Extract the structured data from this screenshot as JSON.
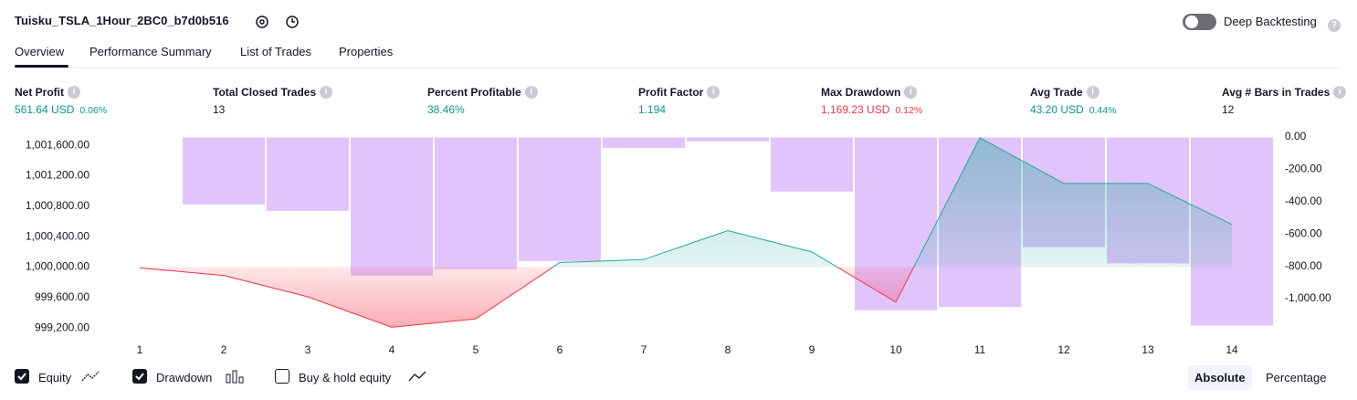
{
  "header": {
    "title": "Tuisku_TSLA_1Hour_2BC0_b7d0b516",
    "toggle_label": "Deep Backtesting"
  },
  "tabs": [
    "Overview",
    "Performance Summary",
    "List of Trades",
    "Properties"
  ],
  "metrics": [
    {
      "label": "Net Profit",
      "value": "561.64 USD",
      "percent": "0.06%",
      "color": "#089981"
    },
    {
      "label": "Total Closed Trades",
      "value": "13",
      "color": "#131722"
    },
    {
      "label": "Percent Profitable",
      "value": "38.46%",
      "color": "#089981"
    },
    {
      "label": "Profit Factor",
      "value": "1.194",
      "color": "#089981"
    },
    {
      "label": "Max Drawdown",
      "value": "1,169.23 USD",
      "percent": "0.12%",
      "color": "#f23645"
    },
    {
      "label": "Avg Trade",
      "value": "43.20 USD",
      "percent": "0.44%",
      "color": "#089981"
    },
    {
      "label": "Avg # Bars in Trades",
      "value": "12",
      "color": "#131722"
    }
  ],
  "chart_data": {
    "type": "combo",
    "categories": [
      "1",
      "2",
      "3",
      "4",
      "5",
      "6",
      "7",
      "8",
      "9",
      "10",
      "11",
      "12",
      "13",
      "14"
    ],
    "series": [
      {
        "name": "Equity",
        "type": "area",
        "checked": true,
        "color": "#22ab94",
        "negative_color": "#f23645",
        "baseline": 1000000,
        "values": [
          999990,
          999890,
          999610,
          999210,
          999320,
          1000060,
          1000100,
          1000480,
          1000200,
          999540,
          1001700,
          1001100,
          1001100,
          1000560
        ]
      },
      {
        "name": "Drawdown",
        "type": "bar",
        "axis": "y2",
        "checked": true,
        "color": "#e1c4fc",
        "values": [
          -5,
          -420,
          -460,
          -860,
          -820,
          -770,
          -70,
          -30,
          -340,
          -1075,
          -1055,
          -685,
          -785,
          -1169
        ]
      }
    ],
    "ylim": [
      999070,
      1001710
    ],
    "yticks": [
      {
        "value": 999200,
        "label": "999,200.00"
      },
      {
        "value": 999600,
        "label": "999,600.00"
      },
      {
        "value": 1000000,
        "label": "1,000,000.00"
      },
      {
        "value": 1000400,
        "label": "1,000,400.00"
      },
      {
        "value": 1000800,
        "label": "1,000,800.00"
      },
      {
        "value": 1001200,
        "label": "1,001,200.00"
      },
      {
        "value": 1001600,
        "label": "1,001,600.00"
      }
    ],
    "y2lim": [
      -1243,
      0
    ],
    "y2ticks": [
      {
        "value": -1000,
        "label": "-1,000.00"
      },
      {
        "value": -800,
        "label": "-800.00"
      },
      {
        "value": -600,
        "label": "-600.00"
      },
      {
        "value": -400,
        "label": "-400.00"
      },
      {
        "value": -200,
        "label": "-200.00"
      },
      {
        "value": 0,
        "label": "0.00"
      }
    ]
  },
  "extra_toggle": {
    "label": "Buy & hold equity",
    "checked": false
  },
  "modes": [
    "Absolute",
    "Percentage"
  ]
}
